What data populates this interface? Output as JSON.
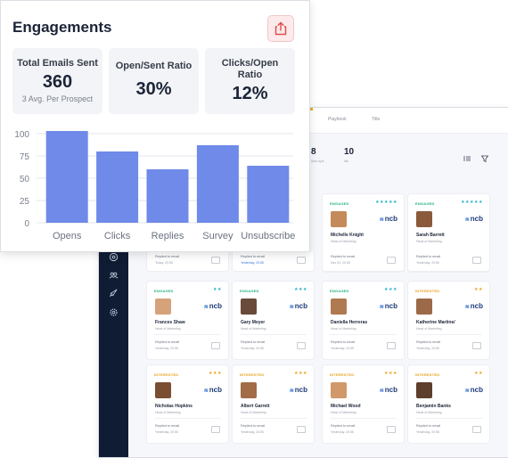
{
  "engagements": {
    "title": "Engagements",
    "export_icon": "share-export-icon",
    "kpis": [
      {
        "label": "Total Emails Sent",
        "value": "360",
        "sub": "3 Avg. Per Prospect"
      },
      {
        "label": "Open/Sent Ratio",
        "value": "30%",
        "sub": ""
      },
      {
        "label": "Clicks/Open Ratio",
        "value": "12%",
        "sub": ""
      }
    ]
  },
  "chart_data": {
    "type": "bar",
    "categories": [
      "Opens",
      "Clicks",
      "Replies",
      "Survey",
      "Unsubscribe"
    ],
    "values": [
      103,
      80,
      60,
      87,
      64
    ],
    "ylim": [
      0,
      100
    ],
    "yticks": [
      0,
      25,
      50,
      75,
      100
    ],
    "grid": true,
    "color": "#6f8ae8"
  },
  "background_app": {
    "tabs": [
      "Playbook",
      "Title"
    ],
    "stats": [
      {
        "value": "8",
        "label": "llow ups"
      },
      {
        "value": "10",
        "label": "ills"
      }
    ],
    "sidebar_icons": [
      "target-icon",
      "team-icon",
      "rocket-icon",
      "settings-gear-icon"
    ],
    "top_row_cards": [
      {
        "status": "ENGAGED",
        "status_color": "#22b07d",
        "stars": "★★★★★",
        "star_color": "#22b0c9",
        "name": "Michelle Knight",
        "role": "Head of Marketing",
        "logo": "ncb",
        "action": "",
        "date": ""
      },
      {
        "status": "ENGAGED",
        "status_color": "#22b07d",
        "stars": "★★★★★",
        "star_color": "#22b0c9",
        "name": "Sarah Barrett",
        "role": "Head of Marketing",
        "logo": "ncb",
        "action": "",
        "date": ""
      }
    ],
    "top_row_footers": [
      {
        "action": "Replied to email",
        "date": "Today, 20:55",
        "date_blue": false
      },
      {
        "action": "Replied to email",
        "date": "Yesterday, 20:55",
        "date_blue": true
      },
      {
        "action": "Replied to email",
        "date": "Dec 02, 20:55",
        "date_blue": false
      },
      {
        "action": "Replied to email",
        "date": "Yesterday, 20:55",
        "date_blue": false
      }
    ],
    "cards": [
      {
        "status": "ENGAGED",
        "status_color": "#22b07d",
        "stars": "★★",
        "star_color": "#22b0c9",
        "name": "Frances Shaw",
        "role": "Head of Marketing",
        "logo": "ncb",
        "action": "Replied to email",
        "date": "Yesterday, 20:55",
        "date_blue": false
      },
      {
        "status": "ENGAGED",
        "status_color": "#22b07d",
        "stars": "★★★",
        "star_color": "#22b0c9",
        "name": "Gary Meyer",
        "role": "Head of Marketing",
        "logo": "ncb",
        "action": "Replied to email",
        "date": "Yesterday, 20:55",
        "date_blue": false
      },
      {
        "status": "ENGAGED",
        "status_color": "#22b07d",
        "stars": "★★★",
        "star_color": "#22b0c9",
        "name": "Daniella Herreras",
        "role": "Head of Marketing",
        "logo": "ncb",
        "action": "Replied to email",
        "date": "Yesterday, 20:55",
        "date_blue": false
      },
      {
        "status": "INTERESTED",
        "status_color": "#e8a21c",
        "stars": "★★",
        "star_color": "#e8a21c",
        "name": "Katherine Martine/",
        "role": "Head of Marketing",
        "logo": "ncb",
        "action": "Replied to email",
        "date": "Yesterday, 20:55",
        "date_blue": false
      },
      {
        "status": "INTERESTED",
        "status_color": "#e8a21c",
        "stars": "★★★",
        "star_color": "#e8a21c",
        "name": "Nicholas Hopkins",
        "role": "Head of Marketing",
        "logo": "ncb",
        "action": "Replied to email",
        "date": "Yesterday, 20:55",
        "date_blue": false
      },
      {
        "status": "INTERESTED",
        "status_color": "#e8a21c",
        "stars": "★★★",
        "star_color": "#e8a21c",
        "name": "Albert Garrett",
        "role": "Head of Marketing",
        "logo": "ncb",
        "action": "Replied to email",
        "date": "Yesterday, 20:55",
        "date_blue": false
      },
      {
        "status": "INTERESTED",
        "status_color": "#e8a21c",
        "stars": "★★★",
        "star_color": "#e8a21c",
        "name": "Michael Wood",
        "role": "Head of Marketing",
        "logo": "ncb",
        "action": "Replied to email",
        "date": "Yesterday, 20:55",
        "date_blue": false
      },
      {
        "status": "INTERESTED",
        "status_color": "#e8a21c",
        "stars": "★★",
        "star_color": "#e8a21c",
        "name": "Benjamin Banks",
        "role": "Head of Marketing",
        "logo": "ncb",
        "action": "Replied to email",
        "date": "Yesterday, 20:55",
        "date_blue": false
      }
    ]
  }
}
